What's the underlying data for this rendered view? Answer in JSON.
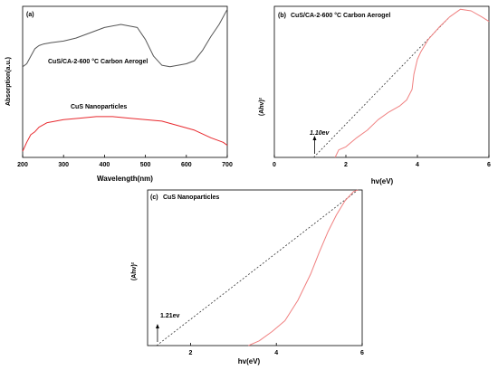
{
  "chart_data": [
    {
      "type": "line",
      "panel_label": "(a)",
      "xlabel": "Wavelength(nm)",
      "ylabel": "Absorption(a.u.)",
      "xlim": [
        200,
        700
      ],
      "ylim": [
        0,
        1
      ],
      "xticks": [
        200,
        300,
        400,
        500,
        600,
        700
      ],
      "y_ticks_labeled": false,
      "grid": false,
      "series": [
        {
          "name": "CuS/CA-2-600 °C Carbon Aerogel",
          "color": "#555555",
          "x": [
            200,
            210,
            220,
            230,
            240,
            250,
            270,
            300,
            330,
            360,
            400,
            440,
            480,
            500,
            520,
            540,
            560,
            580,
            600,
            620,
            640,
            660,
            680,
            700
          ],
          "y": [
            0.6,
            0.62,
            0.67,
            0.72,
            0.74,
            0.75,
            0.76,
            0.77,
            0.79,
            0.82,
            0.86,
            0.88,
            0.86,
            0.78,
            0.67,
            0.61,
            0.6,
            0.61,
            0.62,
            0.64,
            0.71,
            0.8,
            0.88,
            0.98
          ]
        },
        {
          "name": "CuS Nanoparticles",
          "color": "#e8292e",
          "x": [
            200,
            210,
            220,
            230,
            240,
            260,
            300,
            340,
            380,
            420,
            460,
            500,
            540,
            580,
            620,
            660,
            690,
            700
          ],
          "y": [
            0.04,
            0.1,
            0.15,
            0.17,
            0.2,
            0.23,
            0.25,
            0.26,
            0.27,
            0.27,
            0.26,
            0.25,
            0.24,
            0.21,
            0.18,
            0.13,
            0.1,
            0.08
          ]
        }
      ],
      "annotations": [
        "CuS/CA-2-600 °C Carbon Aerogel",
        "CuS  Nanoparticles"
      ]
    },
    {
      "type": "line",
      "panel_label": "(b)",
      "title": "CuS/CA-2-600 °C Carbon Aerogel",
      "xlabel": "hv(eV)",
      "ylabel": "(Ahv)²",
      "xlim": [
        0,
        6
      ],
      "ylim": [
        0,
        1
      ],
      "xticks": [
        0,
        2,
        4,
        6
      ],
      "y_ticks_labeled": false,
      "grid": false,
      "series": [
        {
          "name": "",
          "color": "#f08080",
          "x": [
            1.7,
            1.8,
            2.0,
            2.3,
            2.6,
            2.9,
            3.2,
            3.5,
            3.7,
            3.85,
            3.9,
            4.0,
            4.1,
            4.3,
            4.6,
            4.9,
            5.2,
            5.5,
            5.8,
            6.0
          ],
          "y": [
            0.0,
            0.05,
            0.07,
            0.13,
            0.18,
            0.25,
            0.3,
            0.34,
            0.38,
            0.45,
            0.55,
            0.65,
            0.7,
            0.78,
            0.86,
            0.93,
            0.98,
            0.97,
            0.93,
            0.9
          ]
        }
      ],
      "tangent": {
        "x": [
          1.1,
          4.9
        ],
        "y": [
          0.0,
          0.93
        ],
        "style": "dotted"
      },
      "annotations": [
        "1.10ev"
      ]
    },
    {
      "type": "line",
      "panel_label": "(c)",
      "title": "CuS  Nanoparticles",
      "xlabel": "hv(eV)",
      "ylabel": "(Ahv)²",
      "xlim": [
        1.0,
        6.0
      ],
      "ylim": [
        0,
        1
      ],
      "xticks": [
        2,
        4,
        6
      ],
      "y_ticks_labeled": false,
      "grid": false,
      "series": [
        {
          "name": "",
          "color": "#f08080",
          "x": [
            3.35,
            3.6,
            3.9,
            4.2,
            4.5,
            4.8,
            5.0,
            5.2,
            5.4,
            5.6,
            5.8,
            5.9
          ],
          "y": [
            0.0,
            0.03,
            0.09,
            0.16,
            0.29,
            0.46,
            0.6,
            0.73,
            0.84,
            0.93,
            0.99,
            1.0
          ]
        }
      ],
      "tangent": {
        "x": [
          1.21,
          5.9
        ],
        "y": [
          0.0,
          1.0
        ],
        "style": "dotted"
      },
      "annotations": [
        "1.21ev"
      ]
    }
  ]
}
